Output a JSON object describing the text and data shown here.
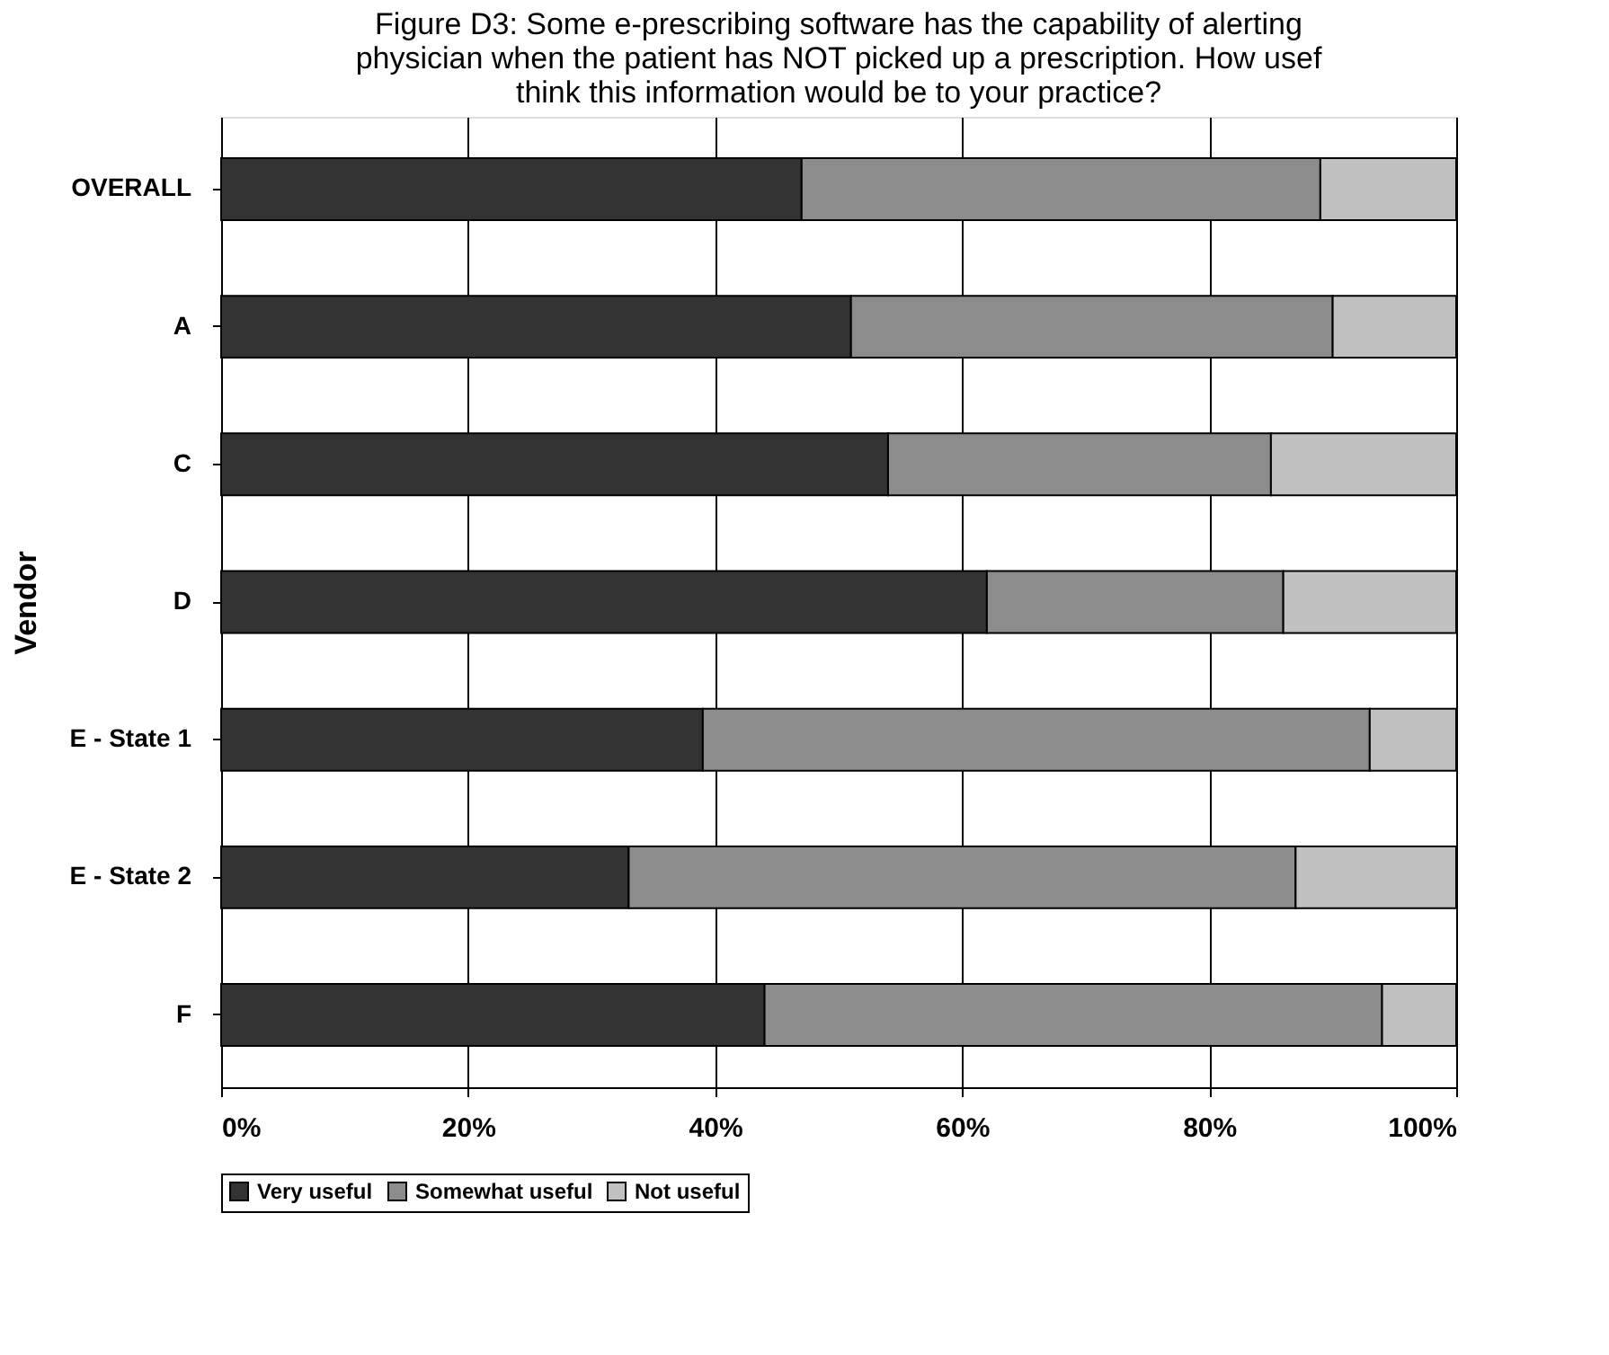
{
  "chart_data": {
    "type": "bar",
    "orientation": "horizontal",
    "stacked": true,
    "title": "Figure D3: Some e-prescribing software has the capability of alerting\nphysician when the patient has NOT picked up a prescription. How usef\nthink this information would be to your practice?",
    "ylabel": "Vendor",
    "categories": [
      "OVERALL",
      "A",
      "C",
      "D",
      "E - State 1",
      "E - State 2",
      "F"
    ],
    "series": [
      {
        "name": "Very useful",
        "color": "#333333",
        "values": [
          47,
          51,
          54,
          62,
          39,
          33,
          44
        ]
      },
      {
        "name": "Somewhat useful",
        "color": "#8c8c8c",
        "values": [
          42,
          39,
          31,
          24,
          54,
          54,
          50
        ]
      },
      {
        "name": "Not useful",
        "color": "#c0c0c0",
        "values": [
          11,
          10,
          15,
          14,
          7,
          13,
          6
        ]
      }
    ],
    "xlim": [
      0,
      100
    ],
    "xticks": [
      {
        "value": 0,
        "label": "0%"
      },
      {
        "value": 20,
        "label": "20%"
      },
      {
        "value": 40,
        "label": "40%"
      },
      {
        "value": 60,
        "label": "60%"
      },
      {
        "value": 80,
        "label": "80%"
      },
      {
        "value": 100,
        "label": "100%"
      }
    ],
    "grid": "x",
    "legend": "bottom"
  }
}
